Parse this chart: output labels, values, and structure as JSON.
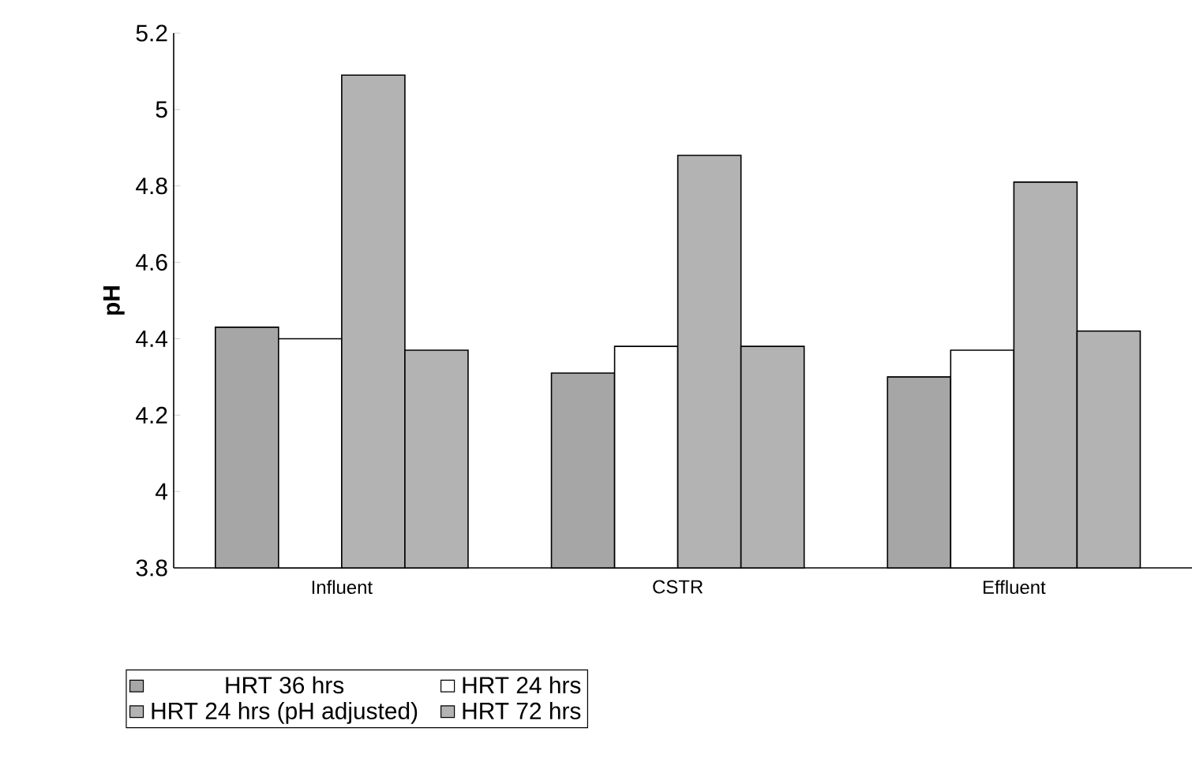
{
  "chart_data": {
    "type": "bar",
    "ylabel": "pH",
    "categories": [
      "Influent",
      "CSTR",
      "Effluent"
    ],
    "series": [
      {
        "name": "HRT 36 hrs",
        "color": "#a6a6a6",
        "values": [
          4.43,
          4.31,
          4.3
        ]
      },
      {
        "name": "HRT 24 hrs",
        "color": "#ffffff",
        "values": [
          4.4,
          4.38,
          4.37
        ]
      },
      {
        "name": "HRT 24 hrs (pH adjusted)",
        "color": "#b3b3b3",
        "values": [
          5.09,
          4.88,
          4.81
        ]
      },
      {
        "name": "HRT 72 hrs",
        "color": "#b3b3b3",
        "values": [
          4.37,
          4.38,
          4.42
        ]
      }
    ],
    "ylim": [
      3.8,
      5.2
    ],
    "yticks": [
      3.8,
      4,
      4.2,
      4.4,
      4.6,
      4.8,
      5,
      5.2
    ],
    "grid": false,
    "legend": "bottom"
  }
}
